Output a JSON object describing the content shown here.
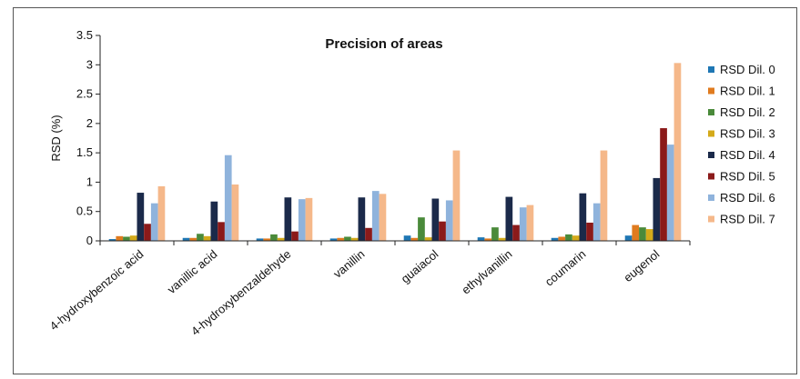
{
  "chart_data": {
    "type": "bar",
    "title": "Precision of areas",
    "ylabel": "RSD (%)",
    "xlabel": "",
    "ylim": [
      0,
      3.5
    ],
    "yticks": [
      0,
      0.5,
      1,
      1.5,
      2,
      2.5,
      3,
      3.5
    ],
    "ytick_labels": [
      "0",
      "0.5",
      "1",
      "1.5",
      "2",
      "2.5",
      "3",
      "3.5"
    ],
    "grid": false,
    "legend_position": "right",
    "categories": [
      "4-hydroxybenzoic acid",
      "vanillic acid",
      "4-hydroxybenzaldehyde",
      "vanillin",
      "guaiacol",
      "ethylvanillin",
      "coumarin",
      "eugenol"
    ],
    "series": [
      {
        "name": "RSD Dil. 0",
        "color": "#1f77b4",
        "values": [
          0.03,
          0.05,
          0.04,
          0.04,
          0.09,
          0.06,
          0.05,
          0.09
        ]
      },
      {
        "name": "RSD Dil. 1",
        "color": "#e07b1f",
        "values": [
          0.08,
          0.05,
          0.04,
          0.05,
          0.05,
          0.04,
          0.07,
          0.27
        ]
      },
      {
        "name": "RSD Dil. 2",
        "color": "#4a8a3a",
        "values": [
          0.07,
          0.12,
          0.11,
          0.07,
          0.4,
          0.23,
          0.11,
          0.23
        ]
      },
      {
        "name": "RSD Dil. 3",
        "color": "#d4aa1a",
        "values": [
          0.09,
          0.08,
          0.05,
          0.05,
          0.06,
          0.05,
          0.09,
          0.2
        ]
      },
      {
        "name": "RSD Dil. 4",
        "color": "#1b2a4a",
        "values": [
          0.82,
          0.67,
          0.74,
          0.74,
          0.72,
          0.75,
          0.81,
          1.07
        ]
      },
      {
        "name": "RSD Dil. 5",
        "color": "#8b1a1a",
        "values": [
          0.29,
          0.32,
          0.16,
          0.22,
          0.33,
          0.27,
          0.31,
          1.92
        ]
      },
      {
        "name": "RSD Dil. 6",
        "color": "#8fb3dc",
        "values": [
          0.64,
          1.46,
          0.71,
          0.85,
          0.69,
          0.57,
          0.64,
          1.64
        ]
      },
      {
        "name": "RSD Dil. 7",
        "color": "#f5b88a",
        "values": [
          0.93,
          0.96,
          0.73,
          0.8,
          1.54,
          0.61,
          1.54,
          3.03
        ]
      }
    ]
  }
}
